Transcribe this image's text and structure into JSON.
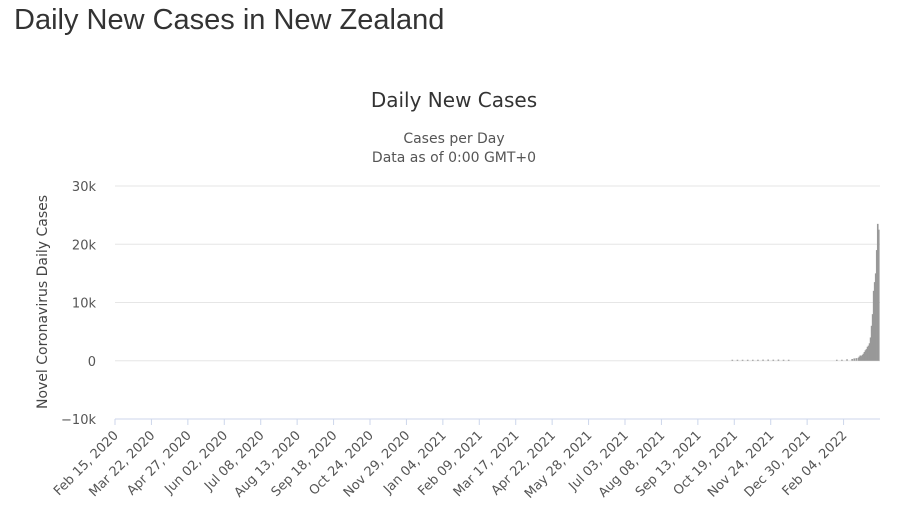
{
  "page": {
    "title": "Daily New Cases in New Zealand"
  },
  "chart_data": {
    "type": "bar",
    "title": "Daily New Cases",
    "subtitle_lines": [
      "Cases per Day",
      "Data as of 0:00 GMT+0"
    ],
    "ylabel": "Novel Coronavirus Daily Cases",
    "xlabel": "",
    "ylim": [
      -10000,
      30000
    ],
    "y_ticks": [
      {
        "value": 30000,
        "label": "30k"
      },
      {
        "value": 20000,
        "label": "20k"
      },
      {
        "value": 10000,
        "label": "10k"
      },
      {
        "value": 0,
        "label": "0"
      },
      {
        "value": -10000,
        "label": "−10k"
      }
    ],
    "grid": true,
    "x_start": "2020-02-15",
    "x_end": "2022-03-03",
    "x_tick_labels": [
      "Feb 15, 2020",
      "Mar 22, 2020",
      "Apr 27, 2020",
      "Jun 02, 2020",
      "Jul 08, 2020",
      "Aug 13, 2020",
      "Sep 18, 2020",
      "Oct 24, 2020",
      "Nov 29, 2020",
      "Jan 04, 2021",
      "Feb 09, 2021",
      "Mar 17, 2021",
      "Apr 22, 2021",
      "May 28, 2021",
      "Jul 03, 2021",
      "Aug 08, 2021",
      "Sep 13, 2021",
      "Oct 19, 2021",
      "Nov 24, 2021",
      "Dec 30, 2021",
      "Feb 04, 2022"
    ],
    "bar_color": "#999999",
    "series": [
      {
        "x": [
          "2021-10-10",
          "2021-10-15",
          "2021-10-20",
          "2021-10-25",
          "2021-10-30",
          "2021-11-04",
          "2021-11-09",
          "2021-11-14",
          "2021-11-19",
          "2021-11-24",
          "2021-11-29",
          "2021-12-04",
          "2022-01-20",
          "2022-01-25",
          "2022-01-30",
          "2022-02-04",
          "2022-02-06",
          "2022-02-08",
          "2022-02-10",
          "2022-02-11",
          "2022-02-12",
          "2022-02-13",
          "2022-02-14",
          "2022-02-15",
          "2022-02-16",
          "2022-02-17",
          "2022-02-18",
          "2022-02-19",
          "2022-02-20",
          "2022-02-21",
          "2022-02-22",
          "2022-02-23",
          "2022-02-24",
          "2022-02-25",
          "2022-02-26",
          "2022-02-27",
          "2022-02-28",
          "2022-03-01",
          "2022-03-02"
        ],
        "values": [
          60,
          90,
          100,
          110,
          130,
          160,
          190,
          200,
          180,
          200,
          170,
          100,
          100,
          150,
          250,
          300,
          400,
          450,
          500,
          700,
          900,
          800,
          1000,
          1200,
          1500,
          1800,
          2000,
          2400,
          2600,
          3000,
          4000,
          6000,
          8000,
          12000,
          13500,
          15000,
          19000,
          23500,
          22500
        ]
      }
    ]
  }
}
